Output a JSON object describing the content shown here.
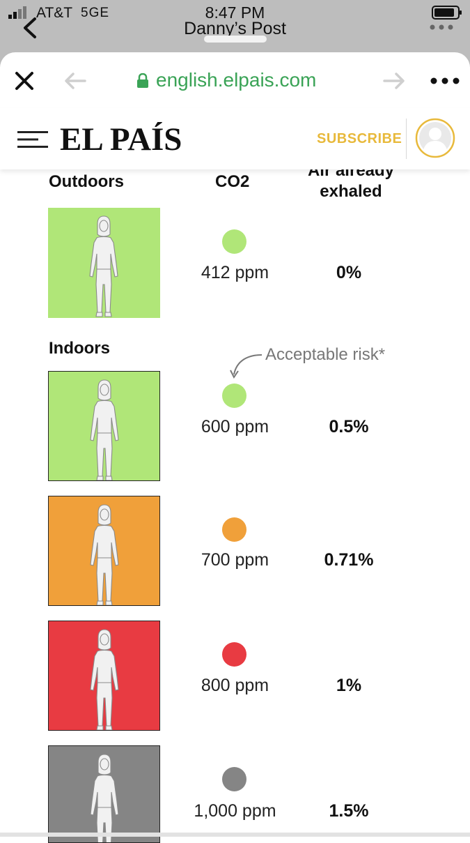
{
  "status_bar": {
    "carrier": "AT&T",
    "network": "5GE",
    "time": "8:47 PM"
  },
  "header": {
    "post_title": "Danny’s Post"
  },
  "browser": {
    "url": "english.elpais.com"
  },
  "site_nav": {
    "logo": "EL PAÍS",
    "subscribe_label": "SUBSCRIBE"
  },
  "graphic": {
    "columns": {
      "outdoors": "Outdoors",
      "co2": "CO2",
      "exhaled_line1": "Air already",
      "exhaled_line2": "exhaled"
    },
    "indoors_label": "Indoors",
    "note": "Acceptable risk*",
    "rows": [
      {
        "section": "outdoors",
        "ppm": "412 ppm",
        "percent": "0%",
        "color": "#b0e678"
      },
      {
        "section": "indoors",
        "ppm": "600 ppm",
        "percent": "0.5%",
        "color": "#b0e678"
      },
      {
        "section": "indoors",
        "ppm": "700 ppm",
        "percent": "0.71%",
        "color": "#f0a03a"
      },
      {
        "section": "indoors",
        "ppm": "800 ppm",
        "percent": "1%",
        "color": "#e83b42"
      },
      {
        "section": "indoors",
        "ppm": "1,000 ppm",
        "percent": "1.5%",
        "color": "#858585"
      }
    ]
  },
  "colors": {
    "green": "#b0e678",
    "orange": "#f0a03a",
    "red": "#e83b42",
    "gray": "#858585",
    "url_green": "#3aa356",
    "subscribe_gold": "#e8b93b"
  }
}
